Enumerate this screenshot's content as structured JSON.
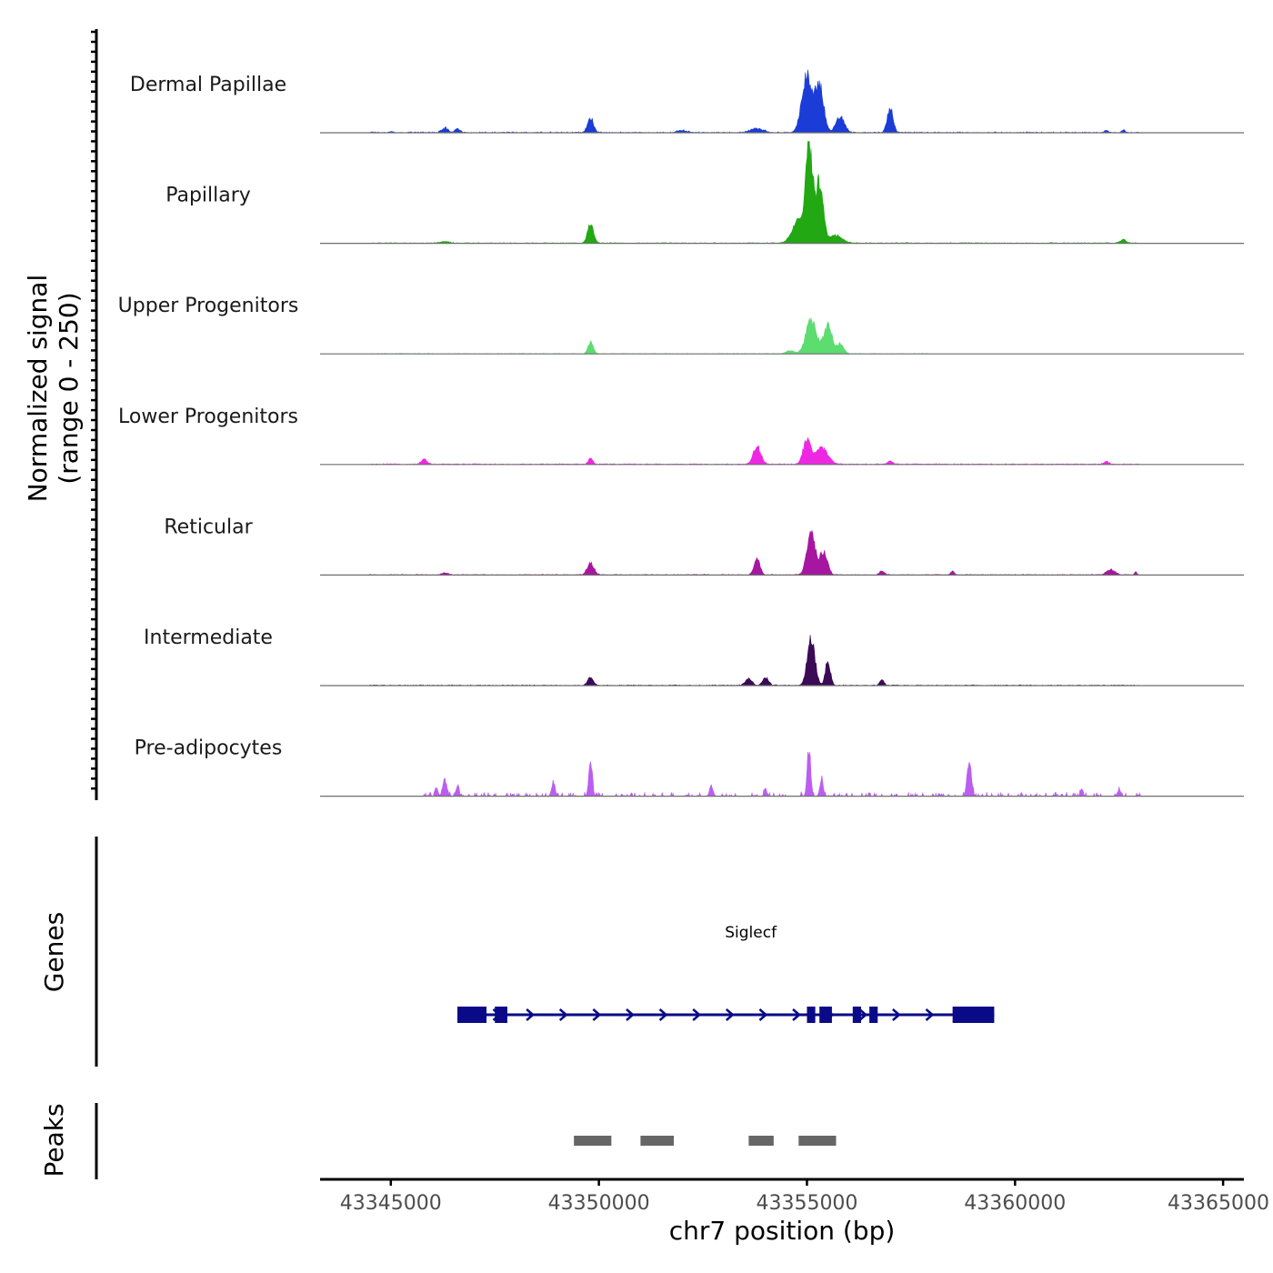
{
  "chart_data": {
    "type": "area",
    "title": "",
    "ylabel": "Normalized signal",
    "ylabel_range": "(range 0 - 250)",
    "yrange": [
      0,
      250
    ],
    "xlabel": "chr7 position (bp)",
    "xlim": [
      43343300,
      43365500
    ],
    "x_ticks": [
      43345000,
      43350000,
      43355000,
      43360000,
      43365000
    ],
    "x_tick_labels": [
      "43345000",
      "43350000",
      "43355000",
      "43360000",
      "43365000"
    ],
    "tracks": [
      {
        "name": "Dermal Papillae",
        "color": "#1b3cd6",
        "peaks": [
          [
            43345000,
            0.015,
            60
          ],
          [
            43346300,
            0.07,
            80
          ],
          [
            43346600,
            0.06,
            60
          ],
          [
            43349800,
            0.22,
            70
          ],
          [
            43352000,
            0.03,
            120
          ],
          [
            43353800,
            0.06,
            150
          ],
          [
            43355000,
            0.9,
            120
          ],
          [
            43355300,
            0.72,
            100
          ],
          [
            43355800,
            0.25,
            100
          ],
          [
            43357000,
            0.38,
            70
          ],
          [
            43362200,
            0.04,
            40
          ],
          [
            43362600,
            0.04,
            40
          ]
        ],
        "noise": 0.015,
        "noiseStart": 43344500,
        "noiseEnd": 43363000,
        "gap": 0.45
      },
      {
        "name": "Papillary",
        "color": "#22a812",
        "peaks": [
          [
            43349800,
            0.3,
            70
          ],
          [
            43355050,
            1.55,
            80
          ],
          [
            43355300,
            0.95,
            90
          ],
          [
            43354800,
            0.35,
            150
          ],
          [
            43355700,
            0.12,
            150
          ],
          [
            43346300,
            0.025,
            100
          ],
          [
            43362600,
            0.06,
            60
          ]
        ],
        "noise": 0.012,
        "noiseStart": 43344500,
        "noiseEnd": 43363000,
        "gap": 0.2
      },
      {
        "name": "Upper Progenitors",
        "color": "#5ddc6f",
        "peaks": [
          [
            43349800,
            0.18,
            60
          ],
          [
            43355100,
            0.55,
            120
          ],
          [
            43355500,
            0.45,
            100
          ],
          [
            43355800,
            0.15,
            80
          ],
          [
            43354600,
            0.05,
            100
          ]
        ],
        "noise": 0.01,
        "noiseStart": 43344500,
        "noiseEnd": 43358000,
        "gap": 0.35
      },
      {
        "name": "Lower Progenitors",
        "color": "#ee28e2",
        "peaks": [
          [
            43345800,
            0.08,
            70
          ],
          [
            43349800,
            0.1,
            50
          ],
          [
            43353800,
            0.28,
            90
          ],
          [
            43355000,
            0.38,
            90
          ],
          [
            43355350,
            0.25,
            150
          ],
          [
            43357000,
            0.05,
            60
          ],
          [
            43362200,
            0.04,
            60
          ]
        ],
        "noise": 0.012,
        "noiseStart": 43344500,
        "noiseEnd": 43363000,
        "gap": 0.25
      },
      {
        "name": "Reticular",
        "color": "#a716a0",
        "peaks": [
          [
            43349800,
            0.18,
            80
          ],
          [
            43353800,
            0.25,
            70
          ],
          [
            43355100,
            0.62,
            100
          ],
          [
            43355400,
            0.35,
            90
          ],
          [
            43356800,
            0.06,
            60
          ],
          [
            43358500,
            0.06,
            40
          ],
          [
            43362300,
            0.08,
            100
          ],
          [
            43362900,
            0.05,
            30
          ],
          [
            43346300,
            0.03,
            80
          ]
        ],
        "noise": 0.012,
        "noiseStart": 43344500,
        "noiseEnd": 43363000,
        "gap": 0.4
      },
      {
        "name": "Intermediate",
        "color": "#3b0b56",
        "peaks": [
          [
            43349800,
            0.12,
            70
          ],
          [
            43353600,
            0.1,
            80
          ],
          [
            43354000,
            0.12,
            70
          ],
          [
            43355100,
            0.75,
            90
          ],
          [
            43355500,
            0.38,
            60
          ],
          [
            43356800,
            0.08,
            50
          ]
        ],
        "noise": 0.012,
        "noiseStart": 43344500,
        "noiseEnd": 43363000,
        "gap": 0.3
      },
      {
        "name": "Pre-adipocytes",
        "color": "#bb5ef0",
        "peaks": [
          [
            43346300,
            0.25,
            50
          ],
          [
            43346100,
            0.15,
            30
          ],
          [
            43346600,
            0.15,
            40
          ],
          [
            43348900,
            0.2,
            40
          ],
          [
            43349800,
            0.58,
            40
          ],
          [
            43352700,
            0.18,
            40
          ],
          [
            43354000,
            0.12,
            30
          ],
          [
            43355050,
            0.75,
            40
          ],
          [
            43355350,
            0.25,
            40
          ],
          [
            43358900,
            0.55,
            50
          ],
          [
            43361600,
            0.12,
            30
          ],
          [
            43362500,
            0.1,
            40
          ]
        ],
        "noise": 0.06,
        "noiseStart": 43345800,
        "noiseEnd": 43363000,
        "gap": 0.72
      }
    ],
    "genes": [
      {
        "name": "Siglecf",
        "start": 43346600,
        "end": 43359500,
        "strand": "+",
        "exons": [
          [
            43346600,
            43347300
          ],
          [
            43347500,
            43347800
          ],
          [
            43355000,
            43355200
          ],
          [
            43355300,
            43355600
          ],
          [
            43356100,
            43356300
          ],
          [
            43356500,
            43356700
          ],
          [
            43358500,
            43359500
          ]
        ]
      }
    ],
    "peaks_track": {
      "label": "Peaks",
      "color": "#666666",
      "regions": [
        [
          43349400,
          43350300
        ],
        [
          43351000,
          43351800
        ],
        [
          43353600,
          43354200
        ],
        [
          43354800,
          43355700
        ]
      ]
    },
    "genes_track_label": "Genes"
  }
}
